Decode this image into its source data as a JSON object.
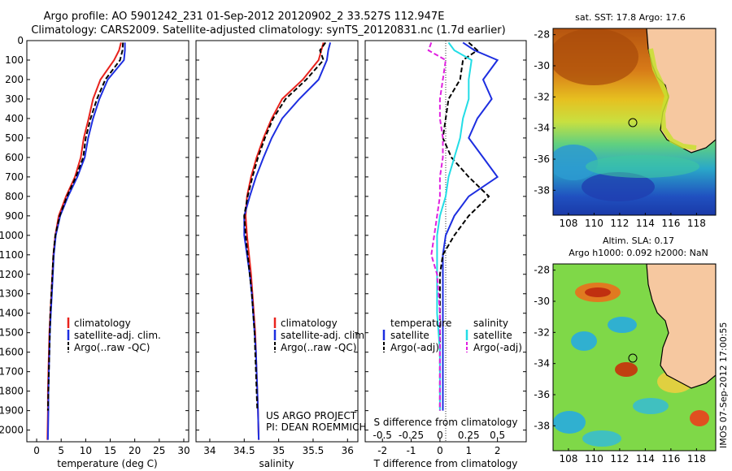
{
  "title": {
    "line1": "Argo profile: AO 5901242_231 01-Sep-2012 20120902_2 33.527S 112.947E",
    "line2": "Climatology: CARS2009. Satellite-adjusted climatology: synTS_20120831.nc (1.7d earlier)"
  },
  "side_label": "IMOS 07-Sep-2012 17:00:55",
  "project_note": {
    "line1": "US ARGO PROJECT",
    "line2": "PI: DEAN ROEMMICH"
  },
  "colors": {
    "climatology": "#e8231d",
    "satellite": "#1d2ee0",
    "argo": "#000000",
    "s_satellite": "#22dde6",
    "s_argo": "#e020e0",
    "land": "#f6c8a0"
  },
  "chart_data": [
    {
      "type": "line",
      "id": "temperature",
      "xlabel": "temperature (deg C)",
      "ylabel": "",
      "xlim": [
        -2,
        31
      ],
      "ylim": [
        2060,
        0
      ],
      "x_ticks": [
        "0",
        "5",
        "10",
        "15",
        "20",
        "25",
        "30"
      ],
      "x_tick_values": [
        0,
        5,
        10,
        15,
        20,
        25,
        30
      ],
      "y_ticks": [
        "0",
        "100",
        "200",
        "300",
        "400",
        "500",
        "600",
        "700",
        "800",
        "900",
        "1000",
        "1100",
        "1200",
        "1300",
        "1400",
        "1500",
        "1600",
        "1700",
        "1800",
        "1900",
        "2000"
      ],
      "y_tick_values": [
        0,
        100,
        200,
        300,
        400,
        500,
        600,
        700,
        800,
        900,
        1000,
        1100,
        1200,
        1300,
        1400,
        1500,
        1600,
        1700,
        1800,
        1900,
        2000
      ],
      "legend": [
        "climatology",
        "satellite-adj. clim.",
        "Argo(..raw -QC)"
      ],
      "series": [
        {
          "name": "climatology",
          "color": "#e8231d",
          "x": [
            17.2,
            16.8,
            15.8,
            13.0,
            11.5,
            10.6,
            9.6,
            9.0,
            7.8,
            6.0,
            4.5,
            3.8,
            3.4,
            3.2,
            3.0,
            2.8,
            2.6,
            2.5,
            2.4,
            2.3,
            2.3,
            2.2
          ],
          "y": [
            10,
            50,
            100,
            200,
            300,
            400,
            500,
            600,
            700,
            800,
            900,
            1000,
            1100,
            1200,
            1300,
            1400,
            1500,
            1600,
            1700,
            1800,
            1900,
            2050
          ]
        },
        {
          "name": "satellite-adj. clim.",
          "color": "#1d2ee0",
          "x": [
            18.0,
            18.0,
            17.8,
            14.5,
            12.8,
            11.5,
            10.5,
            9.8,
            8.3,
            6.4,
            4.8,
            3.9,
            3.5,
            3.3,
            3.1,
            2.9,
            2.7,
            2.6,
            2.5,
            2.4,
            2.4,
            2.3
          ],
          "y": [
            10,
            50,
            100,
            200,
            300,
            400,
            500,
            600,
            700,
            800,
            900,
            1000,
            1100,
            1200,
            1300,
            1400,
            1500,
            1600,
            1700,
            1800,
            1900,
            2050
          ]
        },
        {
          "name": "Argo(..raw -QC)",
          "color": "#000000",
          "x": [
            17.6,
            17.5,
            17.0,
            14.0,
            12.3,
            11.0,
            10.0,
            9.5,
            8.0,
            6.2,
            4.7,
            3.8,
            3.4,
            3.2,
            3.0,
            2.8,
            2.7,
            2.6,
            2.5,
            2.4,
            2.3
          ],
          "y": [
            10,
            50,
            100,
            200,
            300,
            400,
            500,
            600,
            700,
            800,
            900,
            1000,
            1100,
            1200,
            1300,
            1400,
            1500,
            1600,
            1700,
            1800,
            1900
          ]
        }
      ]
    },
    {
      "type": "line",
      "id": "salinity",
      "xlabel": "salinity",
      "ylabel": "",
      "xlim": [
        33.8,
        36.15
      ],
      "ylim": [
        2060,
        0
      ],
      "x_ticks": [
        "34",
        "34.5",
        "35",
        "35.5",
        "36"
      ],
      "x_tick_values": [
        34,
        34.5,
        35,
        35.5,
        36
      ],
      "legend": [
        "climatology",
        "satellite-adj. clim.",
        "Argo(..raw -QC)"
      ],
      "series": [
        {
          "name": "climatology",
          "color": "#e8231d",
          "x": [
            35.65,
            35.62,
            35.58,
            35.35,
            35.05,
            34.9,
            34.78,
            34.68,
            34.6,
            34.54,
            34.52,
            34.54,
            34.57,
            34.6,
            34.62,
            34.64,
            34.66,
            34.67,
            34.68,
            34.69,
            34.7,
            34.71
          ],
          "y": [
            10,
            50,
            100,
            200,
            300,
            400,
            500,
            600,
            700,
            800,
            900,
            1000,
            1100,
            1200,
            1300,
            1400,
            1500,
            1600,
            1700,
            1800,
            1900,
            2050
          ]
        },
        {
          "name": "satellite-adj. clim.",
          "color": "#1d2ee0",
          "x": [
            35.75,
            35.72,
            35.7,
            35.58,
            35.3,
            35.05,
            34.9,
            34.78,
            34.67,
            34.58,
            34.5,
            34.5,
            34.54,
            34.58,
            34.61,
            34.63,
            34.65,
            34.67,
            34.68,
            34.69,
            34.7,
            34.71
          ],
          "y": [
            10,
            50,
            100,
            200,
            300,
            400,
            500,
            600,
            700,
            800,
            900,
            1000,
            1100,
            1200,
            1300,
            1400,
            1500,
            1600,
            1700,
            1800,
            1900,
            2050
          ]
        },
        {
          "name": "Argo(..raw -QC)",
          "color": "#000000",
          "x": [
            35.68,
            35.6,
            35.65,
            35.4,
            35.1,
            34.92,
            34.8,
            34.7,
            34.62,
            34.55,
            34.5,
            34.52,
            34.55,
            34.58,
            34.61,
            34.63,
            34.65,
            34.66,
            34.67,
            34.68,
            34.69
          ],
          "y": [
            10,
            50,
            100,
            200,
            300,
            400,
            500,
            600,
            700,
            800,
            900,
            1000,
            1100,
            1200,
            1300,
            1400,
            1500,
            1600,
            1700,
            1800,
            1900
          ]
        }
      ]
    },
    {
      "type": "line",
      "id": "difference",
      "xlabel": "T difference from climatology",
      "xlabel_top": "S difference from climatology",
      "ylabel": "",
      "xlim": [
        -2.6,
        3.0
      ],
      "ylim": [
        2060,
        0
      ],
      "x_ticks": [
        "-2",
        "-1",
        "0",
        "1",
        "2"
      ],
      "x_tick_values": [
        -2,
        -1,
        0,
        1,
        2
      ],
      "s_ticks": [
        "-0.5",
        "-0.25",
        "0",
        "0.25",
        "0.5"
      ],
      "s_tick_values": [
        -2,
        -1,
        0,
        1,
        2
      ],
      "legend": [
        {
          "group": "temperature",
          "items": [
            "satellite",
            "Argo(-adj)"
          ]
        },
        {
          "group": "salinity",
          "items": [
            "satellite",
            "Argo(-adj)"
          ]
        }
      ],
      "series": [
        {
          "name": "temperature satellite",
          "color": "#1d2ee0",
          "x": [
            0.8,
            1.2,
            2.0,
            1.5,
            1.8,
            1.3,
            1.0,
            1.5,
            2.0,
            1.0,
            0.5,
            0.2,
            0.1,
            0.1,
            0.1,
            0.1,
            0.1,
            0.1,
            0.1,
            0.1,
            0.1
          ],
          "y": [
            10,
            50,
            100,
            200,
            300,
            400,
            500,
            600,
            700,
            800,
            900,
            1000,
            1100,
            1200,
            1300,
            1400,
            1500,
            1600,
            1700,
            1800,
            1900
          ]
        },
        {
          "name": "temperature Argo(-adj)",
          "color": "#000000",
          "x": [
            1.0,
            1.3,
            0.8,
            0.7,
            0.3,
            0.2,
            0.1,
            0.4,
            1.0,
            1.7,
            1.0,
            0.5,
            0.1,
            0.0,
            0.0,
            0.0,
            0.0,
            0.0,
            0.0,
            0.0,
            0.0
          ],
          "y": [
            10,
            50,
            100,
            200,
            300,
            400,
            500,
            600,
            700,
            800,
            900,
            1000,
            1100,
            1200,
            1300,
            1400,
            1500,
            1600,
            1700,
            1800,
            1900
          ]
        },
        {
          "name": "salinity satellite",
          "color": "#22dde6",
          "x": [
            0.3,
            0.5,
            1.1,
            1.0,
            1.0,
            0.8,
            0.7,
            0.5,
            0.3,
            0.2,
            0.0,
            -0.1,
            -0.1,
            -0.1,
            -0.1,
            -0.1,
            -0.05,
            0.0,
            0.0,
            0.0,
            0.0
          ],
          "y": [
            10,
            50,
            100,
            200,
            300,
            400,
            500,
            600,
            700,
            800,
            900,
            1000,
            1100,
            1200,
            1300,
            1400,
            1500,
            1600,
            1700,
            1800,
            1900
          ]
        },
        {
          "name": "salinity Argo(-adj)",
          "color": "#e020e0",
          "x": [
            -0.3,
            -0.4,
            0.2,
            0.1,
            0.0,
            0.0,
            0.1,
            0.1,
            0.0,
            0.0,
            -0.1,
            -0.2,
            -0.3,
            -0.1,
            -0.05,
            0.0,
            0.0,
            0.0,
            0.0,
            0.0,
            0.0
          ],
          "y": [
            10,
            50,
            100,
            200,
            300,
            400,
            500,
            600,
            700,
            800,
            900,
            1000,
            1100,
            1200,
            1300,
            1400,
            1500,
            1600,
            1700,
            1800,
            1900
          ]
        }
      ]
    },
    {
      "type": "heatmap",
      "id": "sst_map",
      "title": "sat. SST: 17.8  Argo: 17.6",
      "x_ticks": [
        "108",
        "110",
        "112",
        "114",
        "116",
        "118"
      ],
      "x_tick_values": [
        108,
        110,
        112,
        114,
        116,
        118
      ],
      "y_ticks": [
        "-28",
        "-30",
        "-32",
        "-34",
        "-36",
        "-38"
      ],
      "y_tick_values": [
        -28,
        -30,
        -32,
        -34,
        -36,
        -38
      ],
      "xlim": [
        106.8,
        119.5
      ],
      "ylim": [
        -39.6,
        -27.6
      ],
      "marker": {
        "lon": 112.95,
        "lat": -33.53
      }
    },
    {
      "type": "heatmap",
      "id": "sla_map",
      "title_line1": "Altim. SLA: 0.17",
      "title_line2": "Argo h1000: 0.092 h2000: NaN",
      "x_ticks": [
        "108",
        "110",
        "112",
        "114",
        "116",
        "118"
      ],
      "x_tick_values": [
        108,
        110,
        112,
        114,
        116,
        118
      ],
      "y_ticks": [
        "-28",
        "-30",
        "-32",
        "-34",
        "-36",
        "-38"
      ],
      "y_tick_values": [
        -28,
        -30,
        -32,
        -34,
        -36,
        -38
      ],
      "xlim": [
        106.8,
        119.5
      ],
      "ylim": [
        -39.6,
        -27.6
      ],
      "marker": {
        "lon": 112.95,
        "lat": -33.53
      }
    }
  ]
}
